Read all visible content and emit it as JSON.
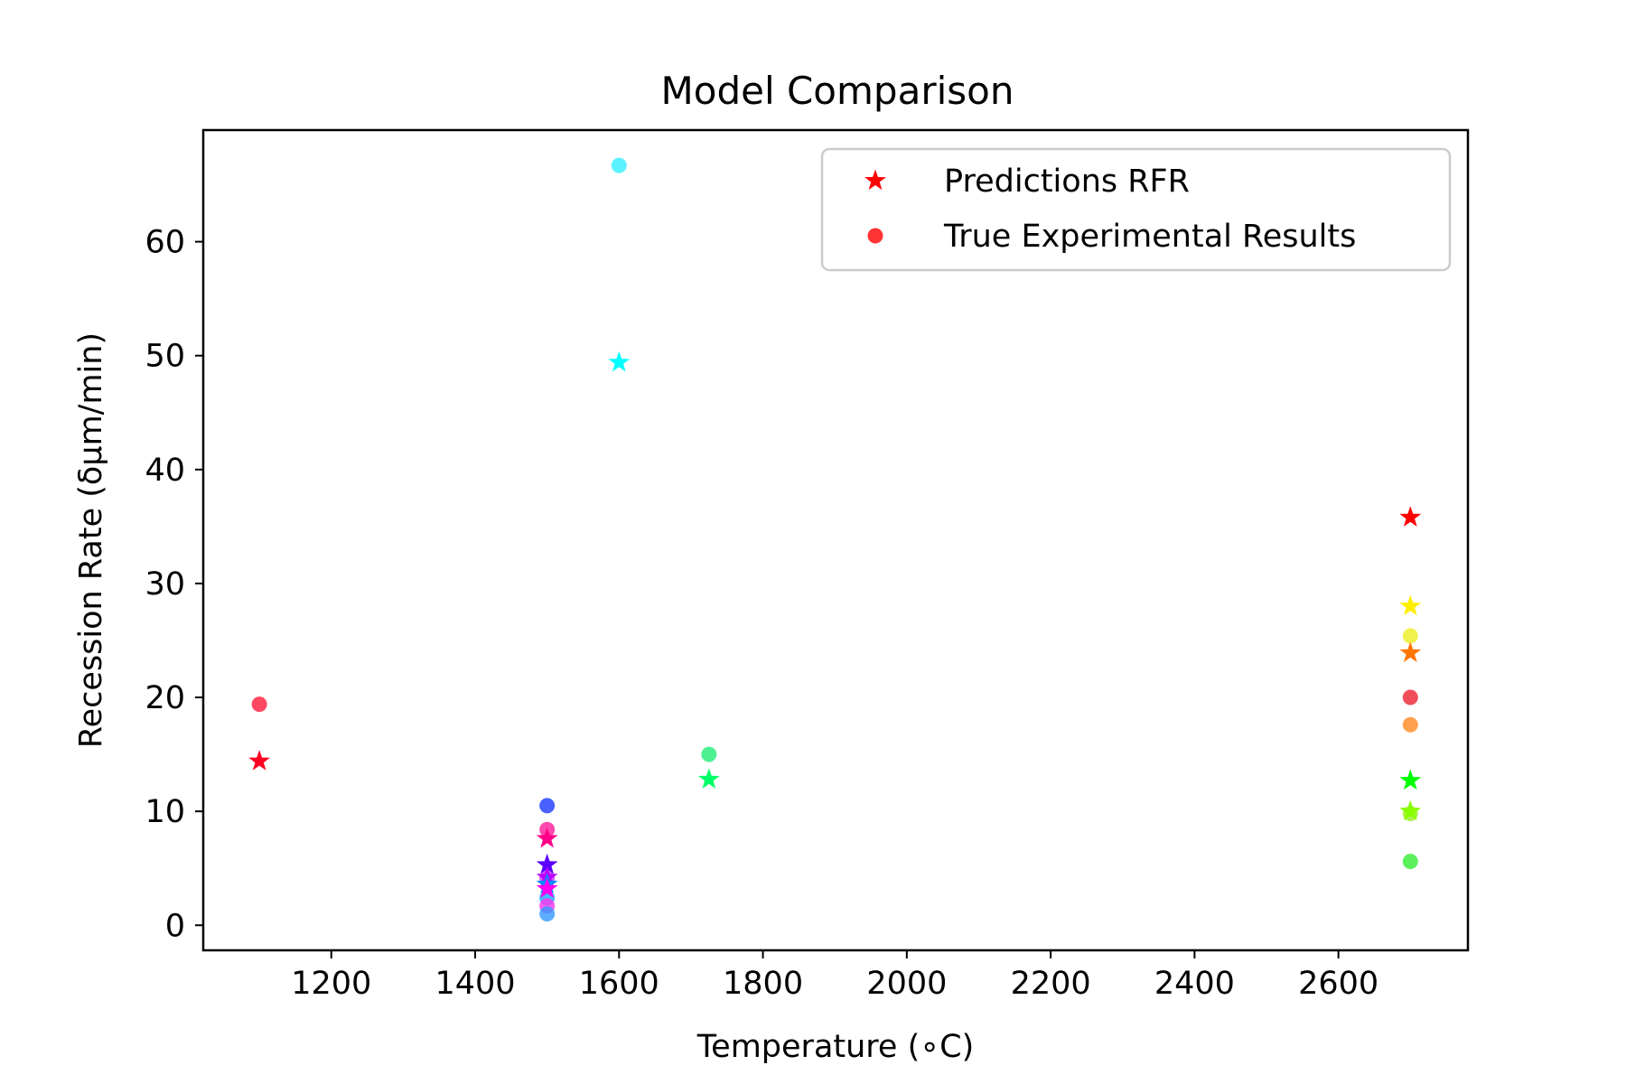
{
  "chart_data": {
    "type": "scatter",
    "title": "Model Comparison",
    "xlabel": "Temperature (∘C)",
    "ylabel": "Recession Rate (δμm/min)",
    "xlim": [
      1022,
      2780
    ],
    "ylim": [
      -2.2,
      69.8
    ],
    "xticks": [
      1200,
      1400,
      1600,
      1800,
      2000,
      2200,
      2400,
      2600
    ],
    "yticks": [
      0,
      10,
      20,
      30,
      40,
      50,
      60
    ],
    "grid": false,
    "legend_position": "upper right",
    "legend": [
      {
        "label": "Predictions RFR",
        "marker": "star",
        "color": "#ff0000"
      },
      {
        "label": "True Experimental Results",
        "marker": "circle",
        "color": "#ff0000"
      }
    ],
    "series": [
      {
        "name": "Predictions RFR",
        "marker": "star",
        "points": [
          {
            "x": 1100,
            "y": 14.4,
            "color": "#ff0022"
          },
          {
            "x": 1500,
            "y": 7.6,
            "color": "#ff0088"
          },
          {
            "x": 1500,
            "y": 5.3,
            "color": "#5a00ff"
          },
          {
            "x": 1500,
            "y": 4.2,
            "color": "#bb00ff"
          },
          {
            "x": 1500,
            "y": 3.6,
            "color": "#0088ff"
          },
          {
            "x": 1500,
            "y": 3.2,
            "color": "#ff00ee"
          },
          {
            "x": 1600,
            "y": 49.4,
            "color": "#00ffff"
          },
          {
            "x": 1725,
            "y": 12.8,
            "color": "#00ff66"
          },
          {
            "x": 2700,
            "y": 35.8,
            "color": "#ff0000"
          },
          {
            "x": 2700,
            "y": 28.0,
            "color": "#ffee00"
          },
          {
            "x": 2700,
            "y": 23.9,
            "color": "#ff7700"
          },
          {
            "x": 2700,
            "y": 12.7,
            "color": "#00ff00"
          },
          {
            "x": 2700,
            "y": 10.0,
            "color": "#88ff00"
          }
        ]
      },
      {
        "name": "True Experimental Results",
        "marker": "circle",
        "points": [
          {
            "x": 1100,
            "y": 19.4,
            "color": "#ff1a3a"
          },
          {
            "x": 1500,
            "y": 10.5,
            "color": "#1a3aff"
          },
          {
            "x": 1500,
            "y": 8.4,
            "color": "#ff1a9a"
          },
          {
            "x": 1500,
            "y": 4.1,
            "color": "#cc33ff"
          },
          {
            "x": 1500,
            "y": 2.4,
            "color": "#1aa6ff"
          },
          {
            "x": 1500,
            "y": 1.7,
            "color": "#ff33ee"
          },
          {
            "x": 1500,
            "y": 1.0,
            "color": "#3399ff"
          },
          {
            "x": 1600,
            "y": 66.7,
            "color": "#33eeff"
          },
          {
            "x": 1725,
            "y": 15.0,
            "color": "#22ee77"
          },
          {
            "x": 2700,
            "y": 25.4,
            "color": "#eeee22"
          },
          {
            "x": 2700,
            "y": 20.0,
            "color": "#ee2233"
          },
          {
            "x": 2700,
            "y": 17.6,
            "color": "#ff8822"
          },
          {
            "x": 2700,
            "y": 9.8,
            "color": "#99ee22"
          },
          {
            "x": 2700,
            "y": 5.6,
            "color": "#33ee33"
          }
        ]
      }
    ]
  }
}
